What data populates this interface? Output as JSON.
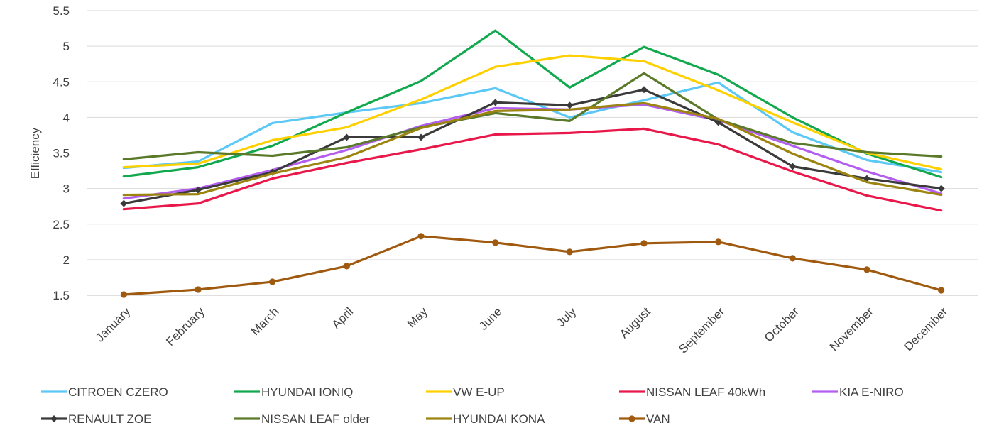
{
  "chart_data": {
    "type": "line",
    "title": "",
    "xlabel": "",
    "ylabel": "Efficiency",
    "ylim": [
      1.5,
      5.5
    ],
    "yticks": [
      1.5,
      2,
      2.5,
      3,
      3.5,
      4,
      4.5,
      5,
      5.5
    ],
    "ytick_labels": [
      "1.5",
      "2",
      "2.5",
      "3",
      "3.5",
      "4",
      "4.5",
      "5",
      "5.5"
    ],
    "grid": true,
    "legend_position": "bottom",
    "categories": [
      "January",
      "February",
      "March",
      "April",
      "May",
      "June",
      "July",
      "August",
      "September",
      "October",
      "November",
      "December"
    ],
    "series": [
      {
        "name": "CITROEN CZERO",
        "color": "#5bc8f5",
        "marker": "none",
        "values": [
          3.29,
          3.38,
          3.92,
          4.07,
          4.2,
          4.41,
          4.0,
          4.24,
          4.49,
          3.79,
          3.4,
          3.23
        ]
      },
      {
        "name": "HYUNDAI IONIQ",
        "color": "#11a84e",
        "marker": "none",
        "values": [
          3.17,
          3.3,
          3.6,
          4.07,
          4.51,
          5.22,
          4.42,
          4.99,
          4.6,
          4.0,
          3.49,
          3.16
        ]
      },
      {
        "name": "VW E-UP",
        "color": "#ffd000",
        "marker": "none",
        "values": [
          3.3,
          3.35,
          3.68,
          3.86,
          4.25,
          4.71,
          4.87,
          4.79,
          4.38,
          3.93,
          3.5,
          3.27
        ]
      },
      {
        "name": "NISSAN LEAF 40kWh",
        "color": "#e8194a",
        "marker": "none",
        "values": [
          2.71,
          2.79,
          3.14,
          3.36,
          3.55,
          3.76,
          3.78,
          3.84,
          3.62,
          3.24,
          2.9,
          2.69
        ]
      },
      {
        "name": "KIA E-NIRO",
        "color": "#b45ef0",
        "marker": "none",
        "values": [
          2.86,
          3.0,
          3.26,
          3.54,
          3.88,
          4.13,
          4.11,
          4.18,
          3.96,
          3.6,
          3.24,
          2.93
        ]
      },
      {
        "name": "RENAULT ZOE",
        "color": "#3a3a3a",
        "marker": "diamond",
        "values": [
          2.79,
          2.98,
          3.23,
          3.72,
          3.72,
          4.21,
          4.17,
          4.39,
          3.93,
          3.31,
          3.14,
          3.0
        ]
      },
      {
        "name": "NISSAN LEAF older",
        "color": "#5a7a2a",
        "marker": "none",
        "values": [
          3.41,
          3.51,
          3.46,
          3.58,
          3.86,
          4.06,
          3.95,
          4.62,
          3.97,
          3.64,
          3.51,
          3.45
        ]
      },
      {
        "name": "HYUNDAI KONA",
        "color": "#9c8410",
        "marker": "none",
        "values": [
          2.91,
          2.92,
          3.21,
          3.44,
          3.85,
          4.09,
          4.11,
          4.2,
          3.98,
          3.49,
          3.09,
          2.91
        ]
      },
      {
        "name": "VAN",
        "color": "#a05a10",
        "marker": "circle",
        "values": [
          1.51,
          1.58,
          1.69,
          1.91,
          2.33,
          2.24,
          2.11,
          2.23,
          2.25,
          2.02,
          1.86,
          1.57
        ]
      }
    ]
  }
}
